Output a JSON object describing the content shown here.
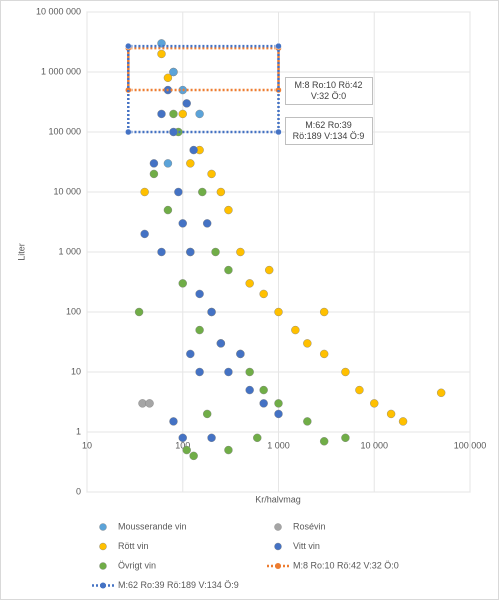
{
  "chart_data": {
    "type": "scatter",
    "x_label": "Kr/halvmag",
    "y_label": "Liter",
    "xlog": true,
    "ylog": true,
    "grid": true,
    "xlim": [
      10,
      100000
    ],
    "xticks": [
      10,
      100,
      {
        "value": 1000,
        "label": "1 000"
      },
      {
        "value": 10000,
        "label": "10 000"
      },
      {
        "value": 100000,
        "label": "100 000"
      }
    ],
    "ylim": [
      0.1,
      10000000
    ],
    "yticks": [
      {
        "value": 0.1,
        "label": "0"
      },
      1,
      10,
      100,
      {
        "value": 1000,
        "label": "1 000"
      },
      {
        "value": 10000,
        "label": "10 000"
      },
      {
        "value": 100000,
        "label": "100 000"
      },
      {
        "value": 1000000,
        "label": "1 000 000"
      },
      {
        "value": 10000000,
        "label": "10 000 000"
      }
    ],
    "series": [
      {
        "name": "Rött vin",
        "color": "#ffc000",
        "x": [
          60,
          70,
          100,
          150,
          200,
          300,
          400,
          500,
          700,
          1000,
          1500,
          2000,
          3000,
          5000,
          7000,
          10000,
          15000,
          20000,
          50000,
          120,
          250,
          800,
          3000,
          40,
          80
        ],
        "values": [
          2000000,
          800000,
          200000,
          50000,
          20000,
          5000,
          1000,
          300,
          200,
          100,
          50,
          30,
          20,
          10,
          5,
          3,
          2,
          1.5,
          4.5,
          30000,
          10000,
          500,
          100,
          10000,
          1000000
        ]
      },
      {
        "name": "Övrigt vin",
        "color": "#70ad47",
        "x": [
          50,
          70,
          90,
          100,
          120,
          150,
          200,
          250,
          300,
          400,
          500,
          700,
          1000,
          2000,
          5000,
          80,
          110,
          160,
          130,
          300,
          35,
          600,
          3000,
          180,
          220
        ],
        "values": [
          20000,
          5000,
          100000,
          300,
          1000,
          50,
          100,
          30,
          500,
          20,
          10,
          5,
          3,
          1.5,
          0.8,
          200000,
          0.5,
          10000,
          0.4,
          0.5,
          100,
          0.8,
          0.7,
          2,
          1000
        ]
      },
      {
        "name": "Vitt vin",
        "color": "#4472c4",
        "x": [
          50,
          60,
          70,
          80,
          90,
          100,
          110,
          120,
          130,
          150,
          180,
          200,
          250,
          300,
          400,
          500,
          700,
          1000,
          80,
          100,
          150,
          60,
          120,
          200,
          40
        ],
        "values": [
          30000,
          200000,
          500000,
          100000,
          10000,
          3000,
          300000,
          1000,
          50000,
          200,
          3000,
          100,
          30,
          10,
          20,
          5,
          3,
          2,
          1.5,
          0.8,
          10,
          1000,
          20,
          0.8,
          2000
        ]
      },
      {
        "name": "Mousserande vin",
        "color": "#5ba3d9",
        "x": [
          60,
          80,
          100,
          150,
          70
        ],
        "values": [
          3000000,
          1000000,
          500000,
          200000,
          30000
        ]
      },
      {
        "name": "Rosévin",
        "color": "#a5a5a5",
        "x": [
          38,
          45
        ],
        "values": [
          3,
          3
        ]
      },
      {
        "name": "M:8 Ro:10 Rö:42 V:32 Ö:0",
        "color": "#ed7d31",
        "line": true,
        "x": [
          27,
          27,
          1000,
          1000,
          27
        ],
        "values": [
          500000,
          2500000,
          2500000,
          500000,
          500000
        ]
      },
      {
        "name": "M:62 Ro:39 Rö:189 V:134 Ö:9",
        "color": "#4472c4",
        "line": true,
        "x": [
          27,
          27,
          1000,
          1000,
          27
        ],
        "values": [
          100000,
          2700000,
          2700000,
          100000,
          100000
        ]
      }
    ]
  }
}
